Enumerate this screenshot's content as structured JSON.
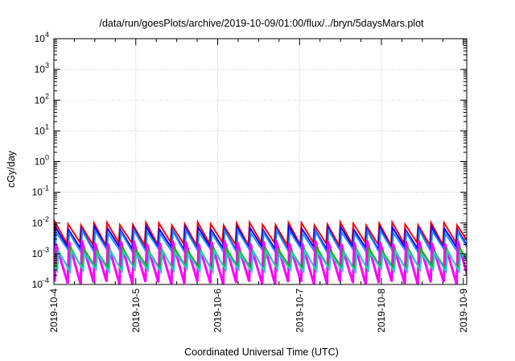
{
  "chart_data": {
    "type": "line",
    "title": "/data/run/goesPlots/archive/2019-10-09/01:00/flux/../bryn/5daysMars.plot",
    "xlabel": "Coordinated Universal Time (UTC)",
    "ylabel": "cGy/day",
    "yscale": "log",
    "ylim": [
      0.0001,
      10000
    ],
    "xlim": [
      "2019-10-04T00:00",
      "2019-10-09T01:00"
    ],
    "y_ticks": [
      {
        "base": "10",
        "exp": "-4"
      },
      {
        "base": "10",
        "exp": "-3"
      },
      {
        "base": "10",
        "exp": "-2"
      },
      {
        "base": "10",
        "exp": "-1"
      },
      {
        "base": "10",
        "exp": "0"
      },
      {
        "base": "10",
        "exp": "1"
      },
      {
        "base": "10",
        "exp": "2"
      },
      {
        "base": "10",
        "exp": "3"
      },
      {
        "base": "10",
        "exp": "4"
      }
    ],
    "x_ticks": [
      "2019-10-4",
      "2019-10-5",
      "2019-10-6",
      "2019-10-7",
      "2019-10-8",
      "2019-10-9"
    ],
    "grid": true,
    "legend": "none",
    "cycle_hours": 3.8,
    "series": [
      {
        "color": "#ff0000",
        "peak": 0.0095,
        "trough": 0.0021,
        "phase_hours": 0.0
      },
      {
        "color": "#0000ff",
        "peak": 0.0068,
        "trough": 0.0015,
        "phase_hours": 0.15
      },
      {
        "color": "#1e90ff",
        "peak": 0.0052,
        "trough": 0.0012,
        "phase_hours": 0.35
      },
      {
        "color": "#ff00ff",
        "peak": 0.0024,
        "trough": 0.00011,
        "phase_hours": 0.25
      },
      {
        "color": "#00c000",
        "peak": 0.0014,
        "trough": 0.00032,
        "phase_hours": 0.8
      },
      {
        "color": "#2fc6d9",
        "peak": 0.0011,
        "trough": 0.00028,
        "phase_hours": 1.0
      }
    ]
  }
}
